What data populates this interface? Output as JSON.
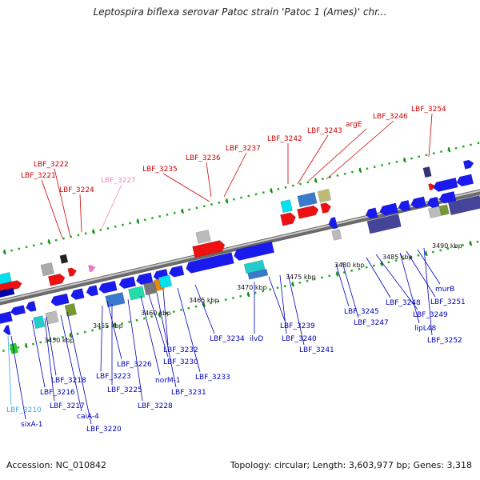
{
  "title": "Leptospira biflexa serovar Patoc strain 'Patoc 1 (Ames)' chr...",
  "footer": {
    "accession": "Accession: NC_010842",
    "topology": "Topology: circular; Length: 3,603,977 bp; Genes: 3,318"
  },
  "colors": {
    "upper_label": "#cc0000",
    "lower_label": "#0000bb",
    "faded_upper_label": "#ee88bb",
    "faded_lower_label": "#33aadd",
    "backbone": "#888888",
    "forward_gene": "#ee1111",
    "reverse_gene": "#1a1aee"
  },
  "ticks": [
    "3450 kbp",
    "3455 kbp",
    "3460 kbp",
    "3465 kbp",
    "3470 kbp",
    "3475 kbp",
    "3480 kbp",
    "3485 kbp",
    "3490 kbp"
  ],
  "upper_labels": [
    {
      "text": "LBF_3221",
      "faded": false
    },
    {
      "text": "LBF_3222",
      "faded": false
    },
    {
      "text": "LBF_3224",
      "faded": false
    },
    {
      "text": "LBF_3227",
      "faded": true
    },
    {
      "text": "LBF_3235",
      "faded": false
    },
    {
      "text": "LBF_3236",
      "faded": false
    },
    {
      "text": "LBF_3237",
      "faded": false
    },
    {
      "text": "LBF_3242",
      "faded": false
    },
    {
      "text": "LBF_3243",
      "faded": false
    },
    {
      "text": "argE",
      "faded": false
    },
    {
      "text": "LBF_3246",
      "faded": false
    },
    {
      "text": "LBF_3254",
      "faded": false
    }
  ],
  "lower_labels": [
    {
      "text": "LBF_3210",
      "faded": true
    },
    {
      "text": "sixA-1",
      "faded": false
    },
    {
      "text": "LBF_3216",
      "faded": false
    },
    {
      "text": "LBF_3217",
      "faded": false
    },
    {
      "text": "LBF_3218",
      "faded": false
    },
    {
      "text": "caiA-4",
      "faded": false
    },
    {
      "text": "LBF_3220",
      "faded": false
    },
    {
      "text": "LBF_3223",
      "faded": false
    },
    {
      "text": "LBF_3225",
      "faded": false
    },
    {
      "text": "LBF_3226",
      "faded": false
    },
    {
      "text": "LBF_3228",
      "faded": false
    },
    {
      "text": "norM-1",
      "faded": false
    },
    {
      "text": "LBF_3230",
      "faded": false
    },
    {
      "text": "LBF_3231",
      "faded": false
    },
    {
      "text": "LBF_3232",
      "faded": false
    },
    {
      "text": "LBF_3233",
      "faded": false
    },
    {
      "text": "LBF_3234",
      "faded": false
    },
    {
      "text": "ilvD",
      "faded": false
    },
    {
      "text": "LBF_3239",
      "faded": false
    },
    {
      "text": "LBF_3240",
      "faded": false
    },
    {
      "text": "LBF_3241",
      "faded": false
    },
    {
      "text": "LBF_3245",
      "faded": false
    },
    {
      "text": "LBF_3247",
      "faded": false
    },
    {
      "text": "LBF_3248",
      "faded": false
    },
    {
      "text": "LBF_3249",
      "faded": false
    },
    {
      "text": "lipL48",
      "faded": false
    },
    {
      "text": "LBF_3251",
      "faded": false
    },
    {
      "text": "murB",
      "faded": false
    },
    {
      "text": "LBF_3252",
      "faded": false
    }
  ]
}
